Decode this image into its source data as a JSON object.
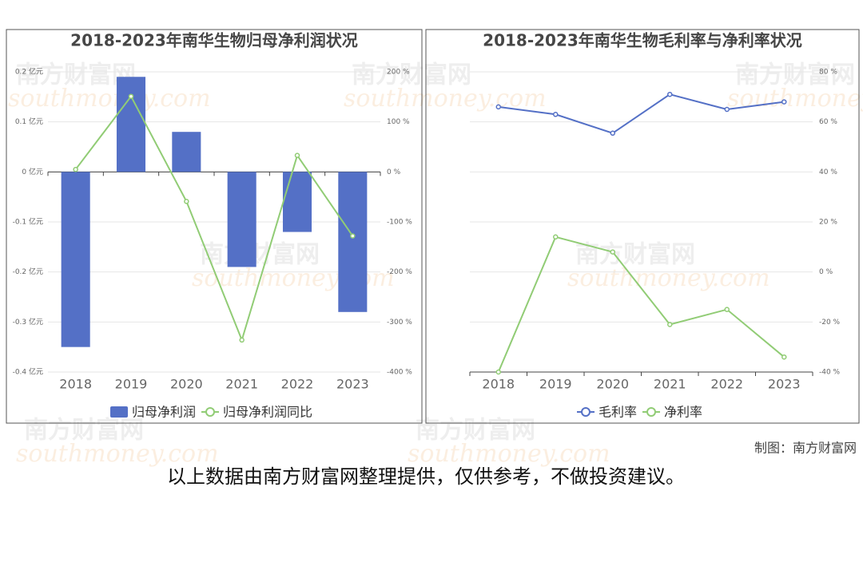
{
  "chart_data": [
    {
      "type": "bar",
      "title": "2018-2023年南华生物归母净利润状况",
      "categories": [
        "2018",
        "2019",
        "2020",
        "2021",
        "2022",
        "2023"
      ],
      "series": [
        {
          "name": "归母净利润",
          "type": "bar",
          "color": "#5470c6",
          "values": [
            -0.35,
            0.19,
            0.08,
            -0.19,
            -0.12,
            -0.28
          ]
        },
        {
          "name": "归母净利润同比",
          "type": "line",
          "axis": "y2",
          "color": "#91cc75",
          "values": [
            5,
            151,
            -59,
            -336,
            33,
            -128
          ]
        }
      ],
      "ylim": [
        -0.4,
        0.2
      ],
      "yticks": [
        {
          "value": -0.4,
          "label": "-0.4 亿元"
        },
        {
          "value": -0.3,
          "label": "-0.3 亿元"
        },
        {
          "value": -0.2,
          "label": "-0.2 亿元"
        },
        {
          "value": -0.1,
          "label": "-0.1 亿元"
        },
        {
          "value": 0,
          "label": "0 亿元"
        },
        {
          "value": 0.1,
          "label": "0.1 亿元"
        },
        {
          "value": 0.2,
          "label": "0.2 亿元"
        }
      ],
      "y2lim": [
        -400,
        200
      ],
      "y2ticks": [
        {
          "value": -400,
          "label": "-400 %"
        },
        {
          "value": -300,
          "label": "-300 %"
        },
        {
          "value": -200,
          "label": "-200 %"
        },
        {
          "value": -100,
          "label": "-100 %"
        },
        {
          "value": 0,
          "label": "0 %"
        },
        {
          "value": 100,
          "label": "100 %"
        },
        {
          "value": 200,
          "label": "200 %"
        }
      ],
      "grid": true
    },
    {
      "type": "line",
      "title": "2018-2023年南华生物毛利率与净利率状况",
      "categories": [
        "2018",
        "2019",
        "2020",
        "2021",
        "2022",
        "2023"
      ],
      "series": [
        {
          "name": "毛利率",
          "type": "line",
          "axis": "y2",
          "color": "#5470c6",
          "values": [
            66,
            63,
            55.5,
            71,
            65,
            68
          ]
        },
        {
          "name": "净利率",
          "type": "line",
          "axis": "y2",
          "color": "#91cc75",
          "values": [
            -40,
            14,
            8,
            -21,
            -15,
            -34
          ]
        }
      ],
      "y2lim": [
        -40,
        80
      ],
      "y2ticks": [
        {
          "value": -40,
          "label": "-40 %"
        },
        {
          "value": -20,
          "label": "-20 %"
        },
        {
          "value": 0,
          "label": "0 %"
        },
        {
          "value": 20,
          "label": "20 %"
        },
        {
          "value": 40,
          "label": "40 %"
        },
        {
          "value": 60,
          "label": "60 %"
        },
        {
          "value": 80,
          "label": "80 %"
        }
      ],
      "grid": true
    }
  ],
  "watermark": "南方财富网",
  "watermark_url": "southmoney.com",
  "credit": "制图：南方财富网",
  "disclaimer": "以上数据由南方财富网整理提供，仅供参考，不做投资建议。"
}
